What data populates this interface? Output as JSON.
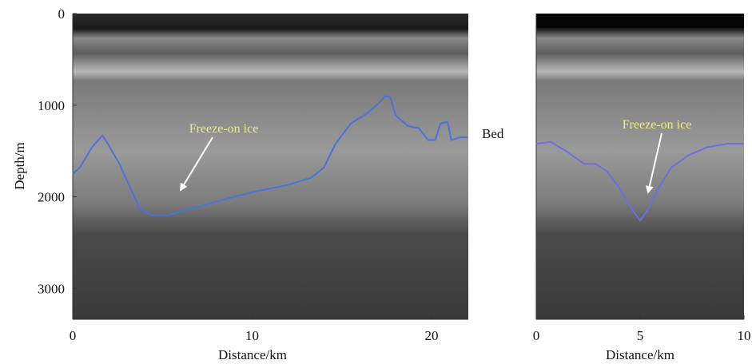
{
  "chart_data": [
    {
      "type": "line",
      "x_label": "Distance/km",
      "y_label": "Depth/m",
      "annotation": "Freeze-on ice",
      "xlim": [
        0,
        22.05
      ],
      "ylim": [
        3336,
        0
      ],
      "xticks": [
        0,
        10,
        20
      ],
      "yticks": [
        0,
        1000,
        2000,
        3000
      ],
      "x": [
        0,
        0.4,
        1.07,
        1.65,
        1.96,
        2.6,
        3.3,
        3.74,
        4.4,
        5.3,
        6.6,
        8.4,
        10.2,
        12,
        13.3,
        14,
        14.65,
        15.5,
        16.4,
        17.1,
        17.4,
        17.7,
        18,
        18.7,
        19.3,
        19.8,
        20.2,
        20.5,
        20.9,
        21.1,
        21.6,
        22
      ],
      "series": [
        {
          "name": "Bed",
          "color": "#4a72dc",
          "values": [
            1750,
            1680,
            1460,
            1330,
            1420,
            1640,
            1940,
            2130,
            2200,
            2200,
            2130,
            2030,
            1940,
            1870,
            1790,
            1680,
            1420,
            1200,
            1090,
            970,
            900,
            910,
            1110,
            1230,
            1250,
            1380,
            1380,
            1200,
            1180,
            1380,
            1350,
            1350
          ]
        }
      ]
    },
    {
      "type": "line",
      "x_label": "Distance/km",
      "annotation": "Freeze-on ice",
      "xlim": [
        0,
        10
      ],
      "ylim": [
        3336,
        0
      ],
      "xticks": [
        0,
        5,
        10
      ],
      "x": [
        0,
        0.7,
        1.5,
        2.3,
        2.85,
        3.4,
        4,
        4.6,
        5,
        5.4,
        5.9,
        6.5,
        7.3,
        8.2,
        9.2,
        10
      ],
      "series": [
        {
          "color": "#6e6ee0",
          "values": [
            1420,
            1400,
            1510,
            1640,
            1640,
            1720,
            1900,
            2130,
            2260,
            2130,
            1900,
            1680,
            1550,
            1460,
            1420,
            1420
          ]
        }
      ]
    }
  ]
}
